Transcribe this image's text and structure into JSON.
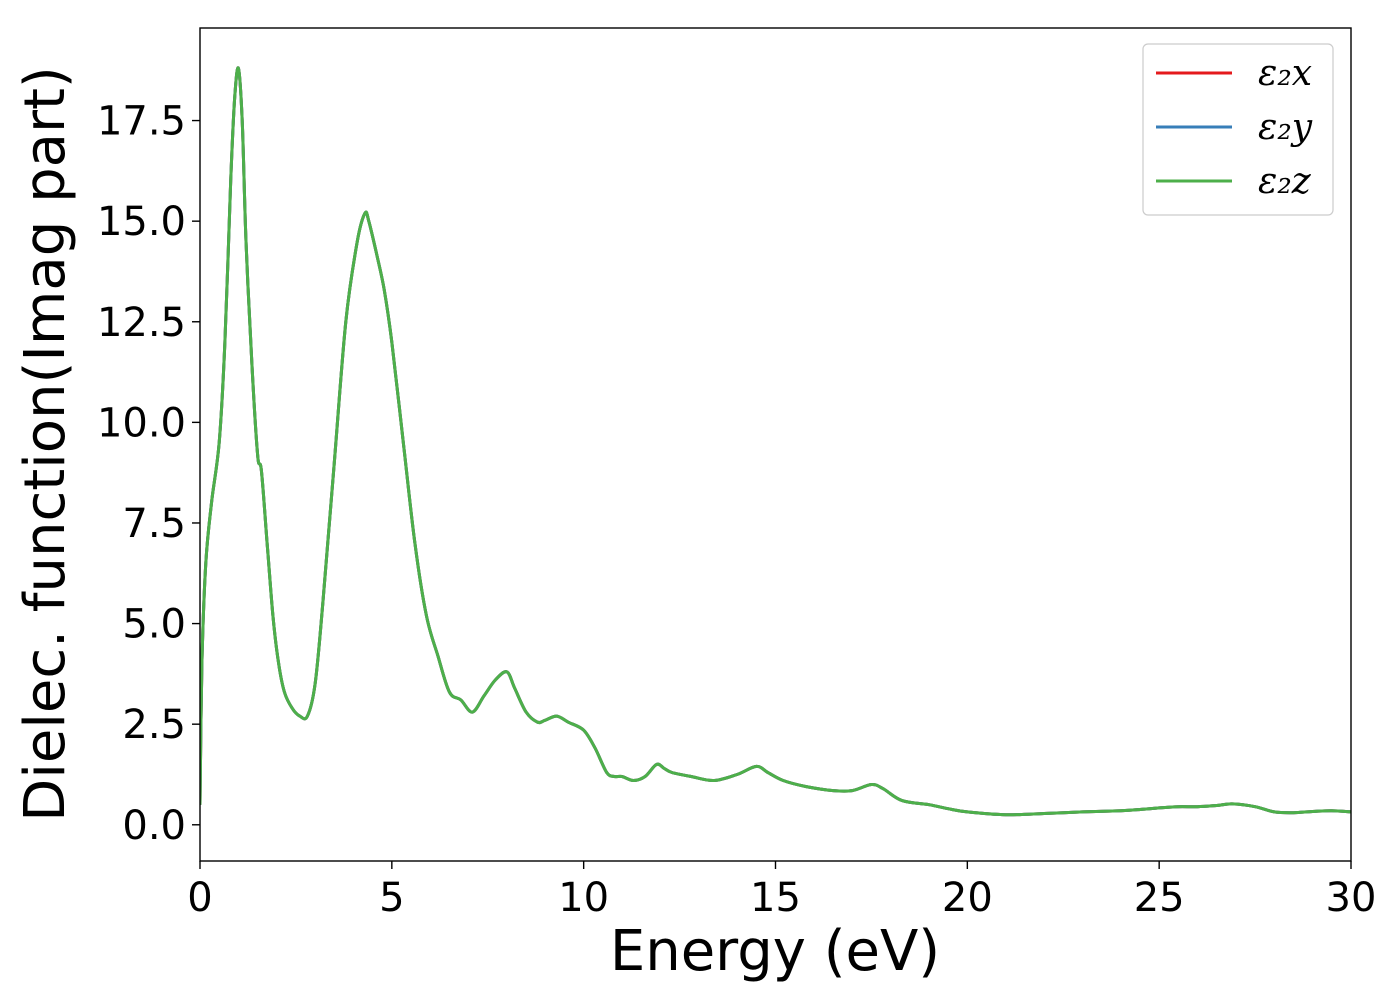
{
  "chart_data": {
    "type": "line",
    "xlabel": "Energy (eV)",
    "ylabel": "Dielec. function(Imag part)",
    "xlim": [
      0,
      30
    ],
    "ylim": [
      -0.9,
      19.8
    ],
    "x_ticks": [
      "0",
      "5",
      "10",
      "15",
      "20",
      "25",
      "30"
    ],
    "y_ticks": [
      "0.0",
      "2.5",
      "5.0",
      "7.5",
      "10.0",
      "12.5",
      "15.0",
      "17.5"
    ],
    "grid": false,
    "legend_position": "top-right",
    "series": [
      {
        "name": "ε₂x",
        "color": "#e41a1c"
      },
      {
        "name": "ε₂y",
        "color": "#377eb8"
      },
      {
        "name": "ε₂z",
        "color": "#4daf4a"
      }
    ],
    "x": [
      0,
      0.05,
      0.15,
      0.3,
      0.5,
      0.65,
      0.8,
      0.9,
      1.0,
      1.1,
      1.2,
      1.35,
      1.5,
      1.6,
      1.75,
      1.9,
      2.05,
      2.2,
      2.4,
      2.6,
      2.8,
      3.0,
      3.2,
      3.5,
      3.8,
      4.1,
      4.3,
      4.4,
      4.6,
      4.8,
      5.0,
      5.3,
      5.6,
      5.9,
      6.2,
      6.5,
      6.8,
      7.1,
      7.4,
      7.7,
      8.0,
      8.2,
      8.5,
      8.8,
      9.0,
      9.3,
      9.6,
      10.0,
      10.3,
      10.6,
      10.8,
      11.0,
      11.3,
      11.6,
      11.9,
      12.1,
      12.3,
      12.8,
      13.4,
      14.0,
      14.5,
      14.8,
      15.2,
      15.8,
      16.5,
      17.0,
      17.5,
      17.8,
      18.3,
      19.0,
      19.5,
      20.0,
      21.0,
      22.0,
      23.0,
      24.0,
      24.5,
      25.0,
      25.5,
      26.0,
      26.5,
      26.9,
      27.5,
      28.0,
      28.5,
      29.0,
      29.5,
      30.0
    ],
    "values": [
      0.5,
      4.0,
      6.5,
      8.0,
      9.5,
      12.0,
      16.0,
      18.0,
      18.8,
      17.5,
      14.5,
      11.5,
      9.2,
      8.8,
      7.0,
      5.2,
      4.0,
      3.3,
      2.9,
      2.7,
      2.7,
      3.5,
      5.5,
      9.0,
      12.5,
      14.5,
      15.2,
      15.0,
      14.2,
      13.3,
      12.0,
      9.5,
      7.0,
      5.2,
      4.2,
      3.3,
      3.1,
      2.8,
      3.2,
      3.6,
      3.8,
      3.4,
      2.8,
      2.55,
      2.6,
      2.7,
      2.55,
      2.35,
      1.9,
      1.3,
      1.2,
      1.2,
      1.1,
      1.2,
      1.5,
      1.4,
      1.3,
      1.2,
      1.1,
      1.25,
      1.45,
      1.3,
      1.1,
      0.95,
      0.85,
      0.85,
      1.0,
      0.9,
      0.6,
      0.5,
      0.4,
      0.32,
      0.25,
      0.28,
      0.32,
      0.35,
      0.38,
      0.42,
      0.45,
      0.45,
      0.48,
      0.52,
      0.45,
      0.32,
      0.3,
      0.33,
      0.35,
      0.32
    ]
  }
}
